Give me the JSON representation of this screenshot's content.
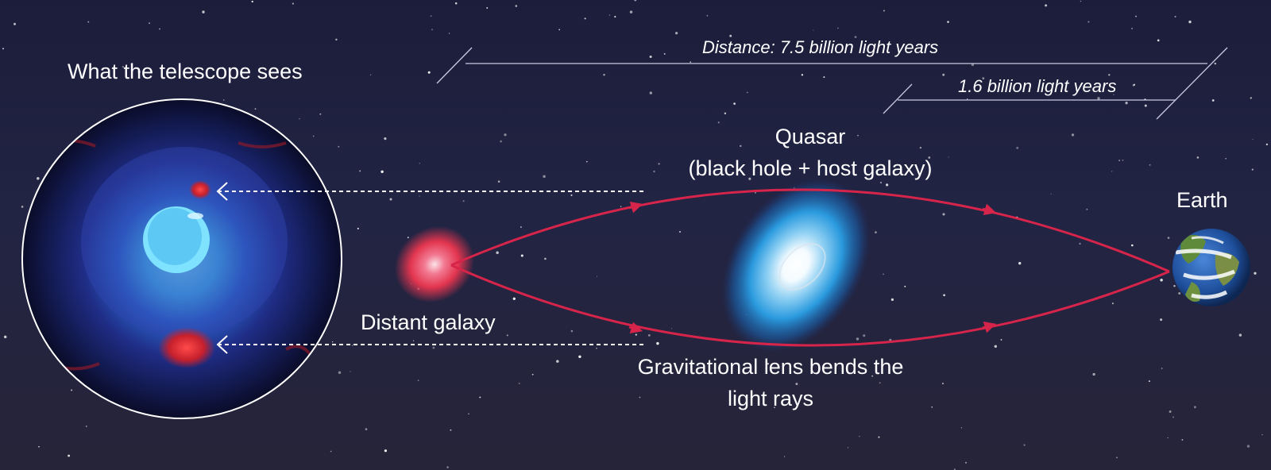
{
  "telescope_view": {
    "title": "What the telescope sees"
  },
  "distance": {
    "total_label": "Distance: 7.5 billion light years",
    "partial_label": "1.6 billion light years"
  },
  "quasar": {
    "line1": "Quasar",
    "line2": "(black hole + host galaxy)"
  },
  "earth": {
    "label": "Earth"
  },
  "distant_galaxy": {
    "label": "Distant galaxy"
  },
  "lens": {
    "line1": "Gravitational lens bends the",
    "line2": "light rays"
  },
  "colors": {
    "light_ray": "#d6244a",
    "quasar_core": "#ffffff",
    "quasar_halo": "#1e8fd8",
    "distant_galaxy": "#e8304f",
    "background": "#1f2140"
  }
}
